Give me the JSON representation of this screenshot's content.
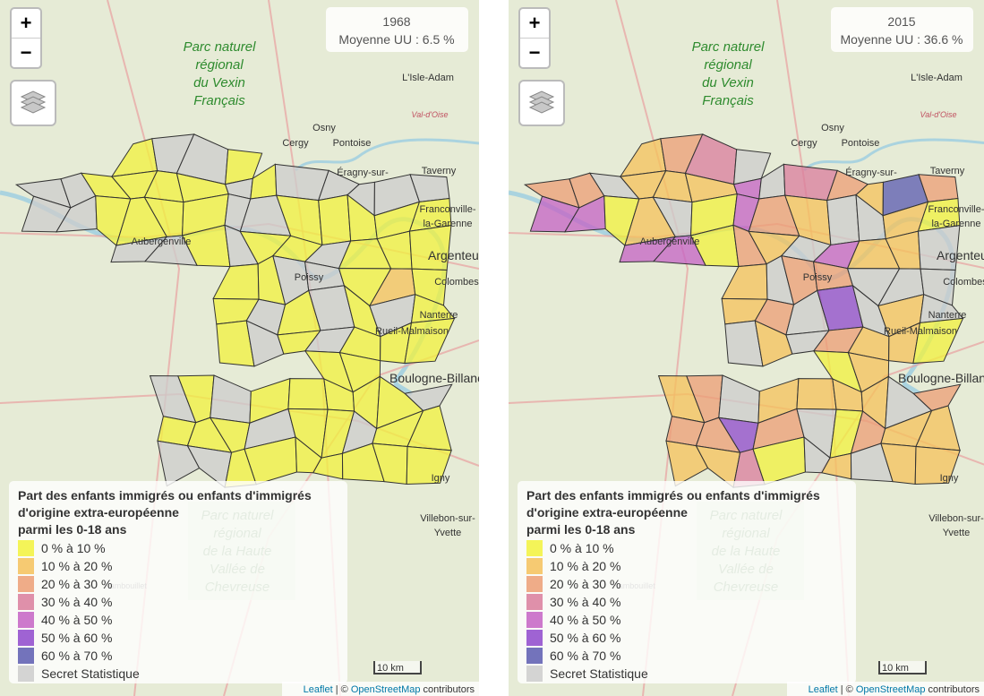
{
  "maps": [
    {
      "info": {
        "title": "1968",
        "subtitle": "Moyenne UU : 6.5 %"
      }
    },
    {
      "info": {
        "title": "2015",
        "subtitle": "Moyenne UU : 36.6 %"
      }
    }
  ],
  "legend": {
    "title": [
      "Part des enfants immigrés ou enfants d'immigrés",
      "d'origine extra-européenne",
      "parmi les 0-18 ans"
    ],
    "items": [
      {
        "label": "0 % à 10 %",
        "color": "#f2f23c"
      },
      {
        "label": "10 % à 20 %",
        "color": "#f5c15a"
      },
      {
        "label": "20 % à 30 %",
        "color": "#ec9e74"
      },
      {
        "label": "30 % à 40 %",
        "color": "#d97c9c"
      },
      {
        "label": "40 % à 50 %",
        "color": "#c462c4"
      },
      {
        "label": "50 % à 60 %",
        "color": "#8e48cc"
      },
      {
        "label": "60 % à 70 %",
        "color": "#5a5ab0"
      },
      {
        "label": "Secret Statistique",
        "color": "#cccccc"
      }
    ]
  },
  "places": [
    "Parc naturel",
    "régional",
    "du Vexin",
    "Français",
    "L'Isle-Adam",
    "Val-d'Oise",
    "Osny",
    "Cergy",
    "Pontoise",
    "Éragny-sur-",
    "Taverny",
    "Franconville-",
    "la-Garenne",
    "Argenteuil",
    "Colombes",
    "Nanterre",
    "Rueil-Malmaison",
    "Boulogne-Billancourt",
    "Aubergenville",
    "Poissy",
    "Igny",
    "Villebon-sur-",
    "Yvette",
    "Rambouillet",
    "Parc naturel",
    "régional",
    "de la Haute",
    "Vallée de",
    "Chevreuse"
  ],
  "zoom": [
    "+",
    "−"
  ],
  "scale": "10 km",
  "attribution": [
    "Leaflet",
    " | © ",
    "OpenStreetMap",
    " contributors"
  ]
}
